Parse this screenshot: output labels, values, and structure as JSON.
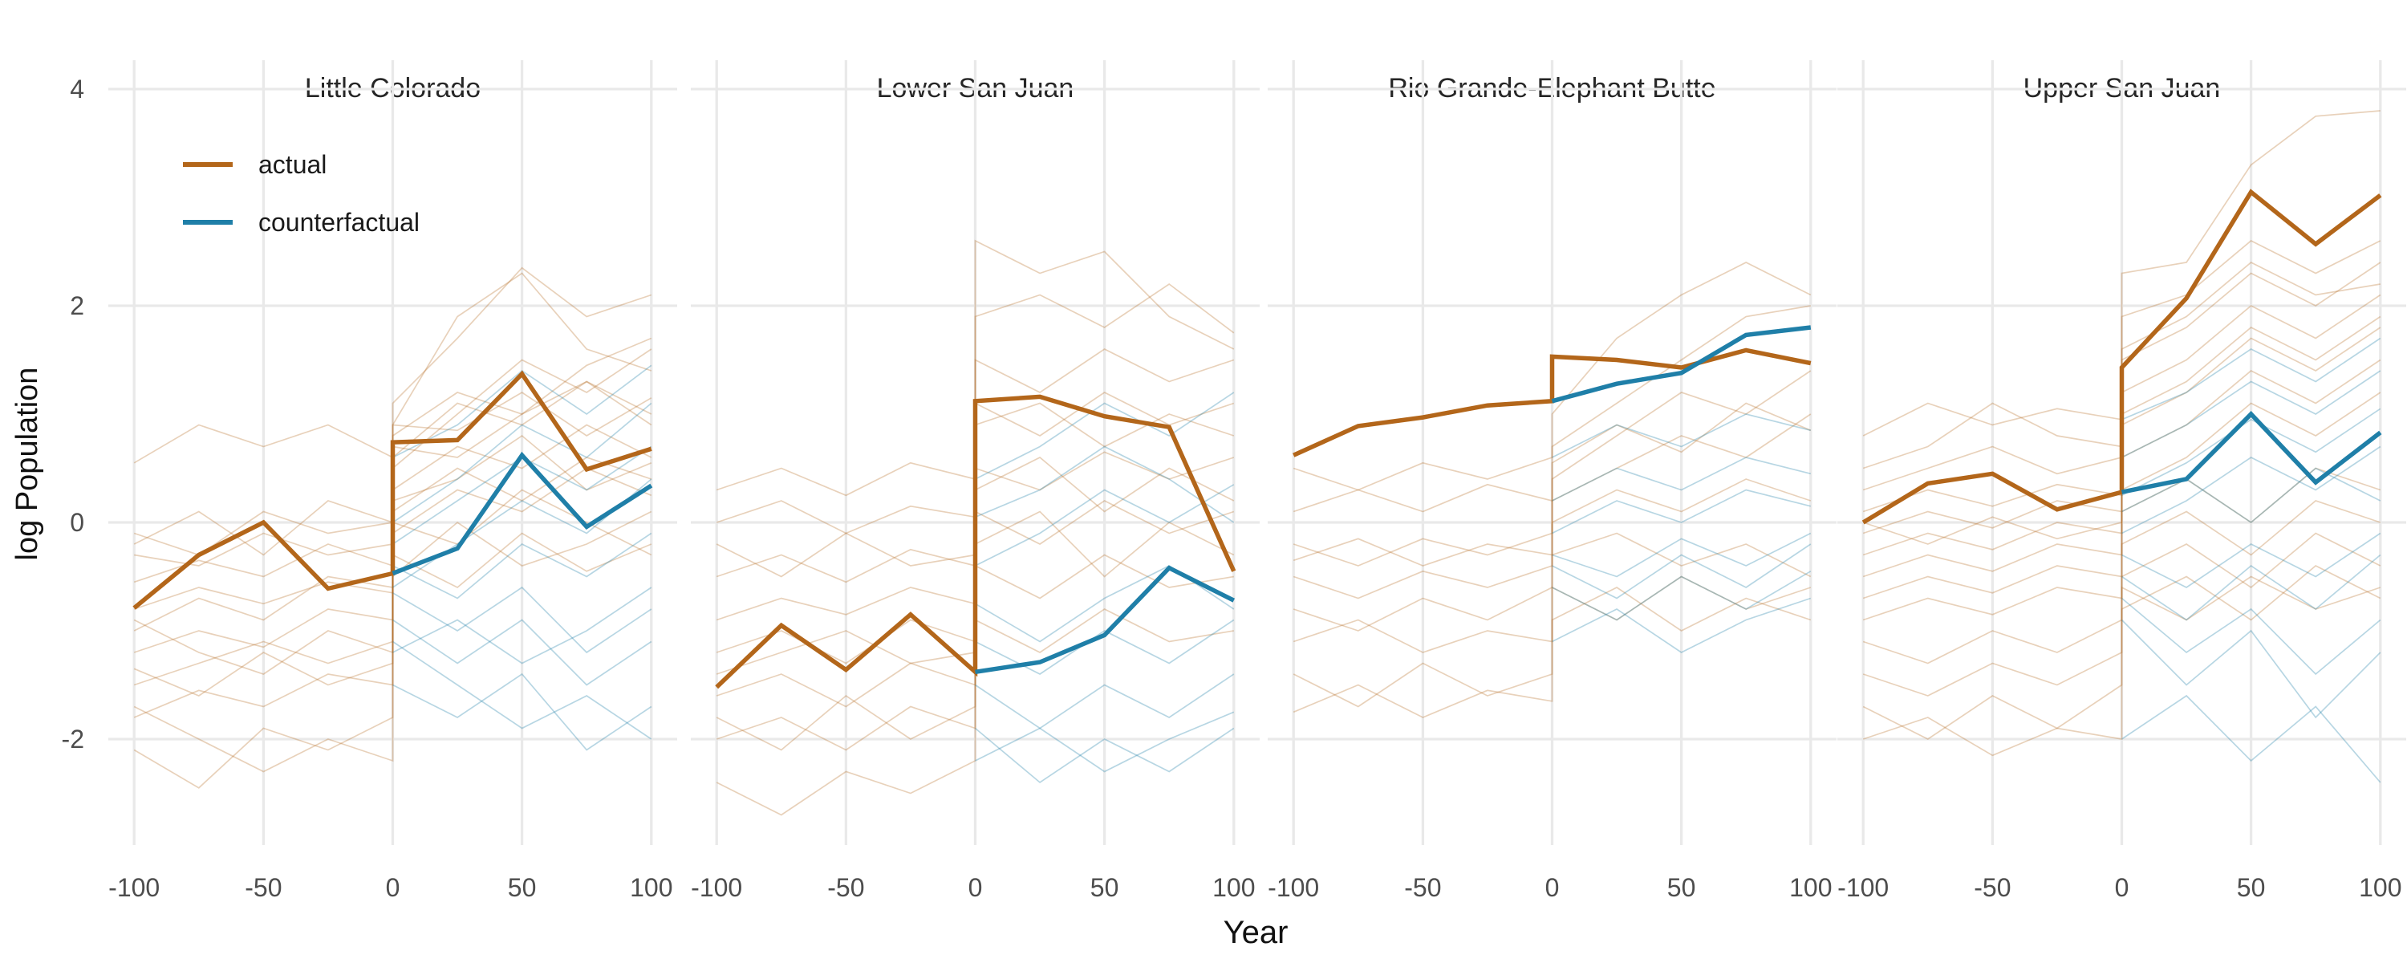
{
  "figure": {
    "y_axis": {
      "title": "log Population",
      "ticks": [
        "4",
        "2",
        "0",
        "-2"
      ],
      "tick_values": [
        4,
        2,
        0,
        -2
      ]
    },
    "x_axis": {
      "title": "Year",
      "ticks": [
        "-100",
        "-50",
        "0",
        "50",
        "100"
      ],
      "tick_values": [
        -100,
        -50,
        0,
        50,
        100
      ]
    },
    "legend": {
      "items": [
        {
          "label": "actual",
          "color": "#B3661A"
        },
        {
          "label": "counterfactual",
          "color": "#1F7FA8"
        }
      ]
    }
  },
  "chart_data": {
    "type": "line",
    "xlabel": "Year",
    "ylabel": "log Population",
    "x_pre_years": [
      -100,
      -75,
      -50,
      -25,
      0
    ],
    "x_post_years": [
      0,
      25,
      50,
      75,
      100
    ],
    "xlim": [
      -110,
      110
    ],
    "ylim": [
      -2.98,
      4.27
    ],
    "grid": "major-only",
    "legend_position": "inside-top-left-first-panel",
    "series_colors": {
      "actual": "#B3661A",
      "counterfactual": "#1F7FA8"
    },
    "panels": [
      {
        "title": "Little Colorado",
        "actual_pre": [
          -0.79,
          -0.3,
          0.0,
          -0.61,
          -0.47
        ],
        "actual_post": [
          0.74,
          0.76,
          1.37,
          0.49,
          0.68
        ],
        "counterfactual": [
          -0.47,
          -0.24,
          0.62,
          -0.04,
          0.34
        ],
        "draws_actual": [
          [
            -0.2,
            0.1,
            -0.3,
            0.2,
            0.0,
            1.1,
            1.7,
            2.35,
            1.9,
            2.1
          ],
          [
            0.55,
            0.9,
            0.7,
            0.9,
            0.6,
            0.9,
            1.9,
            2.3,
            1.6,
            1.4
          ],
          [
            -1.0,
            -0.7,
            -0.9,
            -0.5,
            -0.6,
            0.8,
            1.2,
            1.0,
            1.45,
            1.7
          ],
          [
            -0.3,
            -0.4,
            -0.1,
            -0.3,
            -0.2,
            0.9,
            0.85,
            1.2,
            0.8,
            1.15
          ],
          [
            -0.55,
            -0.35,
            -0.5,
            -0.2,
            -0.4,
            0.7,
            0.6,
            1.0,
            1.3,
            0.9
          ],
          [
            -0.8,
            -0.6,
            -0.75,
            -0.55,
            -0.65,
            0.3,
            0.7,
            0.5,
            0.9,
            0.6
          ],
          [
            -1.2,
            -1.0,
            -1.15,
            -0.8,
            -0.9,
            0.2,
            0.4,
            0.8,
            0.3,
            0.55
          ],
          [
            -1.5,
            -1.3,
            -1.1,
            -1.3,
            -1.1,
            -0.1,
            0.3,
            0.1,
            0.5,
            0.25
          ],
          [
            -1.8,
            -1.55,
            -1.7,
            -1.4,
            -1.5,
            0.0,
            -0.2,
            0.3,
            0.0,
            -0.3
          ],
          [
            -2.1,
            -2.45,
            -1.9,
            -2.1,
            -1.8,
            -0.5,
            0.0,
            -0.4,
            -0.2,
            0.1
          ],
          [
            -0.9,
            -1.2,
            -1.4,
            -1.0,
            -1.2,
            0.5,
            1.0,
            1.5,
            1.2,
            1.6
          ],
          [
            -1.35,
            -1.6,
            -1.2,
            -1.5,
            -1.3,
            0.1,
            0.5,
            0.2,
            0.6,
            0.4
          ],
          [
            -0.1,
            -0.3,
            0.1,
            -0.1,
            0.0,
            0.6,
            1.1,
            0.9,
            1.3,
            1.0
          ],
          [
            -1.7,
            -2.0,
            -2.3,
            -2.0,
            -2.2,
            -0.3,
            -0.6,
            -0.1,
            -0.45,
            -0.2
          ]
        ],
        "draws_counterfactual": [
          [
            0.0,
            0.4,
            0.9,
            0.6,
            1.1
          ],
          [
            0.6,
            0.9,
            1.4,
            1.0,
            1.45
          ],
          [
            -0.6,
            -0.2,
            0.2,
            -0.1,
            0.4
          ],
          [
            -0.2,
            0.2,
            0.6,
            0.3,
            0.7
          ],
          [
            -0.4,
            -0.7,
            -0.2,
            -0.5,
            -0.1
          ],
          [
            -0.65,
            -1.0,
            -0.6,
            -1.2,
            -0.8
          ],
          [
            -0.9,
            -1.3,
            -0.9,
            -1.5,
            -1.1
          ],
          [
            -1.1,
            -1.5,
            -1.9,
            -1.6,
            -2.0
          ],
          [
            -1.5,
            -1.8,
            -1.4,
            -2.1,
            -1.7
          ],
          [
            -1.2,
            -0.9,
            -1.3,
            -1.0,
            -0.6
          ]
        ]
      },
      {
        "title": "Lower San Juan",
        "actual_pre": [
          -1.52,
          -0.95,
          -1.36,
          -0.85,
          -1.38
        ],
        "actual_post": [
          1.12,
          1.16,
          0.98,
          0.88,
          -0.45
        ],
        "counterfactual": [
          -1.38,
          -1.29,
          -1.04,
          -0.42,
          -0.72
        ],
        "draws_actual": [
          [
            0.3,
            0.5,
            0.25,
            0.55,
            0.4,
            2.6,
            2.3,
            2.5,
            1.9,
            1.6
          ],
          [
            0.0,
            0.2,
            -0.1,
            0.15,
            0.05,
            1.9,
            2.1,
            1.8,
            2.2,
            1.75
          ],
          [
            -0.5,
            -0.3,
            -0.55,
            -0.25,
            -0.4,
            1.5,
            1.2,
            1.6,
            1.3,
            1.5
          ],
          [
            -0.9,
            -0.7,
            -0.85,
            -0.6,
            -0.75,
            0.9,
            1.1,
            0.7,
            1.0,
            0.8
          ],
          [
            -1.2,
            -1.0,
            -1.3,
            -0.9,
            -1.1,
            0.5,
            0.3,
            0.65,
            0.4,
            0.6
          ],
          [
            -1.6,
            -1.4,
            -1.7,
            -1.3,
            -1.5,
            0.1,
            -0.2,
            0.2,
            -0.1,
            0.1
          ],
          [
            -2.0,
            -1.8,
            -2.1,
            -1.7,
            -1.9,
            -0.4,
            -0.7,
            -0.3,
            -0.6,
            -0.5
          ],
          [
            -2.4,
            -2.7,
            -2.3,
            -2.5,
            -2.2,
            -0.9,
            -1.2,
            -0.8,
            -1.1,
            -1.0
          ],
          [
            -0.2,
            -0.5,
            -0.1,
            -0.4,
            -0.3,
            1.1,
            0.8,
            1.2,
            0.9,
            1.1
          ],
          [
            -1.4,
            -1.2,
            -1.0,
            -1.3,
            -1.2,
            0.3,
            0.6,
            0.1,
            0.5,
            0.2
          ],
          [
            -1.8,
            -2.1,
            -1.6,
            -2.0,
            -1.7,
            -0.2,
            0.1,
            -0.5,
            0.0,
            -0.3
          ]
        ],
        "draws_counterfactual": [
          [
            0.4,
            0.7,
            1.1,
            0.8,
            1.2
          ],
          [
            0.05,
            0.3,
            0.7,
            0.4,
            0.0
          ],
          [
            -0.4,
            -0.1,
            0.3,
            0.0,
            0.35
          ],
          [
            -0.75,
            -1.1,
            -0.7,
            -0.4,
            -0.8
          ],
          [
            -1.1,
            -1.4,
            -1.0,
            -1.3,
            -0.9
          ],
          [
            -1.5,
            -1.9,
            -1.5,
            -1.8,
            -1.4
          ],
          [
            -1.9,
            -2.4,
            -2.0,
            -2.3,
            -1.9
          ],
          [
            -2.2,
            -1.9,
            -2.3,
            -2.0,
            -1.75
          ]
        ]
      },
      {
        "title": "Rio Grande-Elephant Butte",
        "actual_pre": [
          0.62,
          0.89,
          0.97,
          1.08,
          1.12
        ],
        "actual_post": [
          1.53,
          1.5,
          1.43,
          1.59,
          1.47
        ],
        "counterfactual": [
          1.12,
          1.28,
          1.38,
          1.73,
          1.8
        ],
        "draws_actual": [
          [
            0.5,
            0.3,
            0.55,
            0.4,
            0.6,
            1.0,
            1.7,
            2.1,
            2.4,
            2.1
          ],
          [
            0.1,
            0.3,
            0.1,
            0.35,
            0.2,
            0.7,
            1.1,
            1.5,
            1.9,
            2.0
          ],
          [
            -0.2,
            -0.4,
            -0.15,
            -0.3,
            -0.1,
            0.4,
            0.8,
            1.2,
            1.0,
            1.4
          ],
          [
            -0.5,
            -0.7,
            -0.45,
            -0.6,
            -0.4,
            0.2,
            0.5,
            0.8,
            0.6,
            1.0
          ],
          [
            -0.8,
            -1.0,
            -0.7,
            -0.9,
            -0.6,
            0.0,
            0.3,
            0.1,
            0.4,
            0.2
          ],
          [
            -1.1,
            -0.9,
            -1.2,
            -1.0,
            -1.1,
            -0.3,
            -0.1,
            -0.4,
            -0.2,
            -0.5
          ],
          [
            -1.4,
            -1.7,
            -1.3,
            -1.6,
            -1.4,
            -0.6,
            -0.9,
            -0.5,
            -0.8,
            -0.6
          ],
          [
            -0.35,
            -0.15,
            -0.4,
            -0.2,
            -0.3,
            0.55,
            0.9,
            0.65,
            1.1,
            0.85
          ],
          [
            -1.75,
            -1.5,
            -1.8,
            -1.55,
            -1.65,
            -0.9,
            -0.6,
            -1.0,
            -0.7,
            -0.9
          ]
        ],
        "draws_counterfactual": [
          [
            0.6,
            0.9,
            0.7,
            1.0,
            0.85
          ],
          [
            0.2,
            0.5,
            0.3,
            0.6,
            0.45
          ],
          [
            -0.1,
            0.2,
            0.0,
            0.3,
            0.15
          ],
          [
            -0.4,
            -0.7,
            -0.3,
            -0.6,
            -0.2
          ],
          [
            -0.6,
            -0.9,
            -0.5,
            -0.8,
            -0.45
          ],
          [
            -1.1,
            -0.8,
            -1.2,
            -0.9,
            -0.7
          ],
          [
            -0.3,
            -0.5,
            -0.15,
            -0.4,
            -0.1
          ]
        ]
      },
      {
        "title": "Upper San Juan",
        "actual_pre": [
          0.0,
          0.36,
          0.45,
          0.12,
          0.28
        ],
        "actual_post": [
          1.43,
          2.07,
          3.05,
          2.57,
          3.02
        ],
        "counterfactual": [
          0.28,
          0.4,
          1.0,
          0.37,
          0.83
        ],
        "draws_actual": [
          [
            0.8,
            1.1,
            0.9,
            1.05,
            0.95,
            2.3,
            2.4,
            3.3,
            3.75,
            3.8
          ],
          [
            0.3,
            0.5,
            0.7,
            0.45,
            0.6,
            1.9,
            2.1,
            2.6,
            2.3,
            2.6
          ],
          [
            0.1,
            0.3,
            0.15,
            0.35,
            0.25,
            1.5,
            1.8,
            2.3,
            2.0,
            2.4
          ],
          [
            -0.1,
            0.1,
            -0.05,
            0.2,
            0.1,
            1.2,
            1.5,
            2.0,
            1.7,
            2.1
          ],
          [
            -0.3,
            -0.1,
            -0.25,
            0.0,
            -0.1,
            0.9,
            1.2,
            1.7,
            1.4,
            1.8
          ],
          [
            -0.5,
            -0.3,
            -0.45,
            -0.2,
            -0.3,
            0.6,
            0.9,
            1.4,
            1.1,
            1.5
          ],
          [
            -0.7,
            -0.5,
            -0.65,
            -0.4,
            -0.5,
            0.3,
            0.6,
            1.1,
            0.8,
            1.2
          ],
          [
            -0.9,
            -0.7,
            -0.85,
            -0.6,
            -0.7,
            0.1,
            0.4,
            0.0,
            0.5,
            0.3
          ],
          [
            -1.1,
            -1.3,
            -1.0,
            -1.2,
            -0.9,
            -0.2,
            0.1,
            -0.3,
            0.2,
            0.0
          ],
          [
            -1.4,
            -1.6,
            -1.3,
            -1.5,
            -1.2,
            -0.5,
            -0.2,
            -0.6,
            -0.1,
            -0.4
          ],
          [
            -1.7,
            -2.0,
            -1.6,
            -1.9,
            -1.5,
            -0.8,
            -0.5,
            -0.9,
            -0.4,
            -0.7
          ],
          [
            0.5,
            0.7,
            1.1,
            0.8,
            0.7,
            1.6,
            1.9,
            2.4,
            2.1,
            2.2
          ],
          [
            -2.0,
            -1.8,
            -2.15,
            -1.9,
            -2.0,
            -0.6,
            -0.9,
            -0.5,
            -0.8,
            -0.6
          ],
          [
            0.0,
            -0.2,
            0.05,
            -0.15,
            0.0,
            1.0,
            1.3,
            1.8,
            1.5,
            1.9
          ]
        ],
        "draws_counterfactual": [
          [
            0.95,
            1.2,
            1.6,
            1.3,
            1.7
          ],
          [
            0.6,
            0.9,
            1.3,
            1.0,
            1.4
          ],
          [
            0.25,
            0.55,
            0.95,
            0.65,
            1.05
          ],
          [
            0.1,
            0.4,
            0.0,
            0.5,
            0.2
          ],
          [
            -0.1,
            0.2,
            0.6,
            0.3,
            0.7
          ],
          [
            -0.3,
            -0.6,
            -0.2,
            -0.5,
            -0.1
          ],
          [
            -0.5,
            -0.9,
            -0.4,
            -0.8,
            -0.3
          ],
          [
            -0.7,
            -1.2,
            -0.8,
            -1.4,
            -0.9
          ],
          [
            -0.9,
            -1.5,
            -1.0,
            -1.8,
            -1.2
          ],
          [
            -2.0,
            -1.6,
            -2.2,
            -1.7,
            -2.4
          ]
        ]
      }
    ],
    "style": {
      "grid_color": "#E9E9E9",
      "draw_opacity_actual": 0.3,
      "draw_opacity_counterfactual": 0.32,
      "thick_width": 5.5,
      "thin_width": 1.7
    }
  }
}
